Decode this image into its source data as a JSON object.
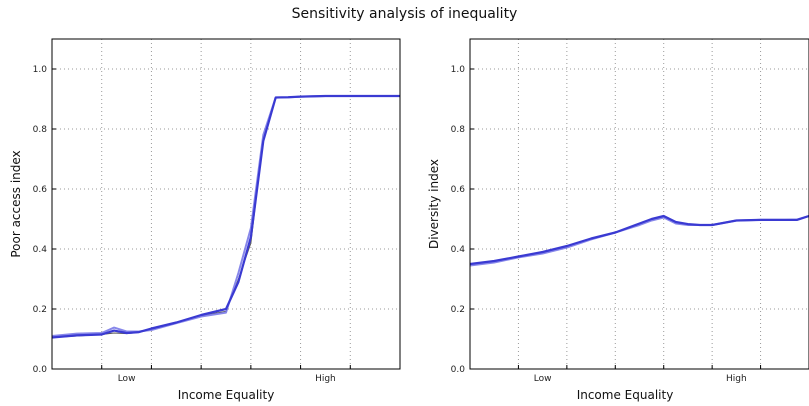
{
  "title": "Sensitivity analysis of inequality",
  "colors": {
    "frame": "#000000",
    "grid": "#9a9a9a",
    "thin": "#555555",
    "blue": "#3a3ad2",
    "blue_light": "#7a7ae8"
  },
  "chart_data": [
    {
      "type": "line",
      "xlabel": "Income Equality",
      "ylabel": "Poor access index",
      "xlim": [
        0,
        14
      ],
      "ylim": [
        0,
        1.1
      ],
      "yticks": [
        "0.0",
        "0.2",
        "0.4",
        "0.6",
        "0.8",
        "1.0"
      ],
      "ytick_values": [
        0,
        0.2,
        0.4,
        0.6,
        0.8,
        1.0
      ],
      "xtick_labels": [
        {
          "x": 3,
          "label": "Low"
        },
        {
          "x": 11,
          "label": "High"
        }
      ],
      "x_gridlines": [
        2,
        4,
        6,
        8,
        10,
        12
      ],
      "series": [
        {
          "style": "thin",
          "x": [
            0,
            1,
            2,
            2.5,
            3,
            3.5,
            4,
            5,
            6,
            7,
            7.5,
            8,
            8.5,
            9,
            9.5,
            10,
            11,
            12,
            13,
            14
          ],
          "y": [
            0.105,
            0.11,
            0.115,
            0.12,
            0.118,
            0.122,
            0.132,
            0.155,
            0.178,
            0.192,
            0.3,
            0.42,
            0.77,
            0.905,
            0.905,
            0.908,
            0.91,
            0.91,
            0.91,
            0.91
          ]
        },
        {
          "style": "light",
          "x": [
            0,
            1,
            2,
            2.5,
            3,
            3.5,
            4,
            5,
            6,
            7,
            7.5,
            8,
            8.5,
            9,
            9.5,
            10,
            11,
            12,
            13,
            14
          ],
          "y": [
            0.11,
            0.118,
            0.12,
            0.138,
            0.125,
            0.125,
            0.13,
            0.153,
            0.175,
            0.188,
            0.32,
            0.47,
            0.78,
            0.905,
            0.905,
            0.908,
            0.91,
            0.91,
            0.91,
            0.91
          ]
        },
        {
          "style": "main",
          "x": [
            0,
            1,
            2,
            2.5,
            3,
            3.5,
            4,
            5,
            6,
            7,
            7.5,
            8,
            8.5,
            9,
            9.5,
            10,
            11,
            12,
            13,
            14
          ],
          "y": [
            0.105,
            0.112,
            0.115,
            0.128,
            0.12,
            0.123,
            0.135,
            0.155,
            0.18,
            0.2,
            0.29,
            0.44,
            0.76,
            0.905,
            0.906,
            0.908,
            0.91,
            0.91,
            0.91,
            0.91
          ]
        }
      ]
    },
    {
      "type": "line",
      "xlabel": "Income Equality",
      "ylabel": "Diversity index",
      "xlim": [
        0,
        14
      ],
      "ylim": [
        0,
        1.1
      ],
      "yticks": [
        "0.0",
        "0.2",
        "0.4",
        "0.6",
        "0.8",
        "1.0"
      ],
      "ytick_values": [
        0,
        0.2,
        0.4,
        0.6,
        0.8,
        1.0
      ],
      "xtick_labels": [
        {
          "x": 3,
          "label": "Low"
        },
        {
          "x": 11,
          "label": "High"
        }
      ],
      "x_gridlines": [
        2,
        4,
        6,
        8,
        10,
        12
      ],
      "series": [
        {
          "style": "light",
          "x": [
            0,
            1,
            2,
            3,
            4,
            5,
            6,
            7,
            7.5,
            8,
            8.5,
            9,
            9.5,
            10,
            11,
            12,
            13,
            13.5,
            14
          ],
          "y": [
            0.345,
            0.355,
            0.372,
            0.385,
            0.405,
            0.432,
            0.455,
            0.48,
            0.495,
            0.505,
            0.485,
            0.48,
            0.48,
            0.48,
            0.495,
            0.497,
            0.497,
            0.498,
            0.51
          ]
        },
        {
          "style": "main",
          "x": [
            0,
            1,
            2,
            3,
            4,
            5,
            6,
            7,
            7.5,
            8,
            8.5,
            9,
            9.5,
            10,
            11,
            12,
            13,
            13.5,
            14
          ],
          "y": [
            0.35,
            0.36,
            0.375,
            0.39,
            0.41,
            0.435,
            0.455,
            0.485,
            0.5,
            0.51,
            0.49,
            0.483,
            0.48,
            0.48,
            0.495,
            0.497,
            0.497,
            0.497,
            0.51
          ]
        }
      ]
    }
  ]
}
